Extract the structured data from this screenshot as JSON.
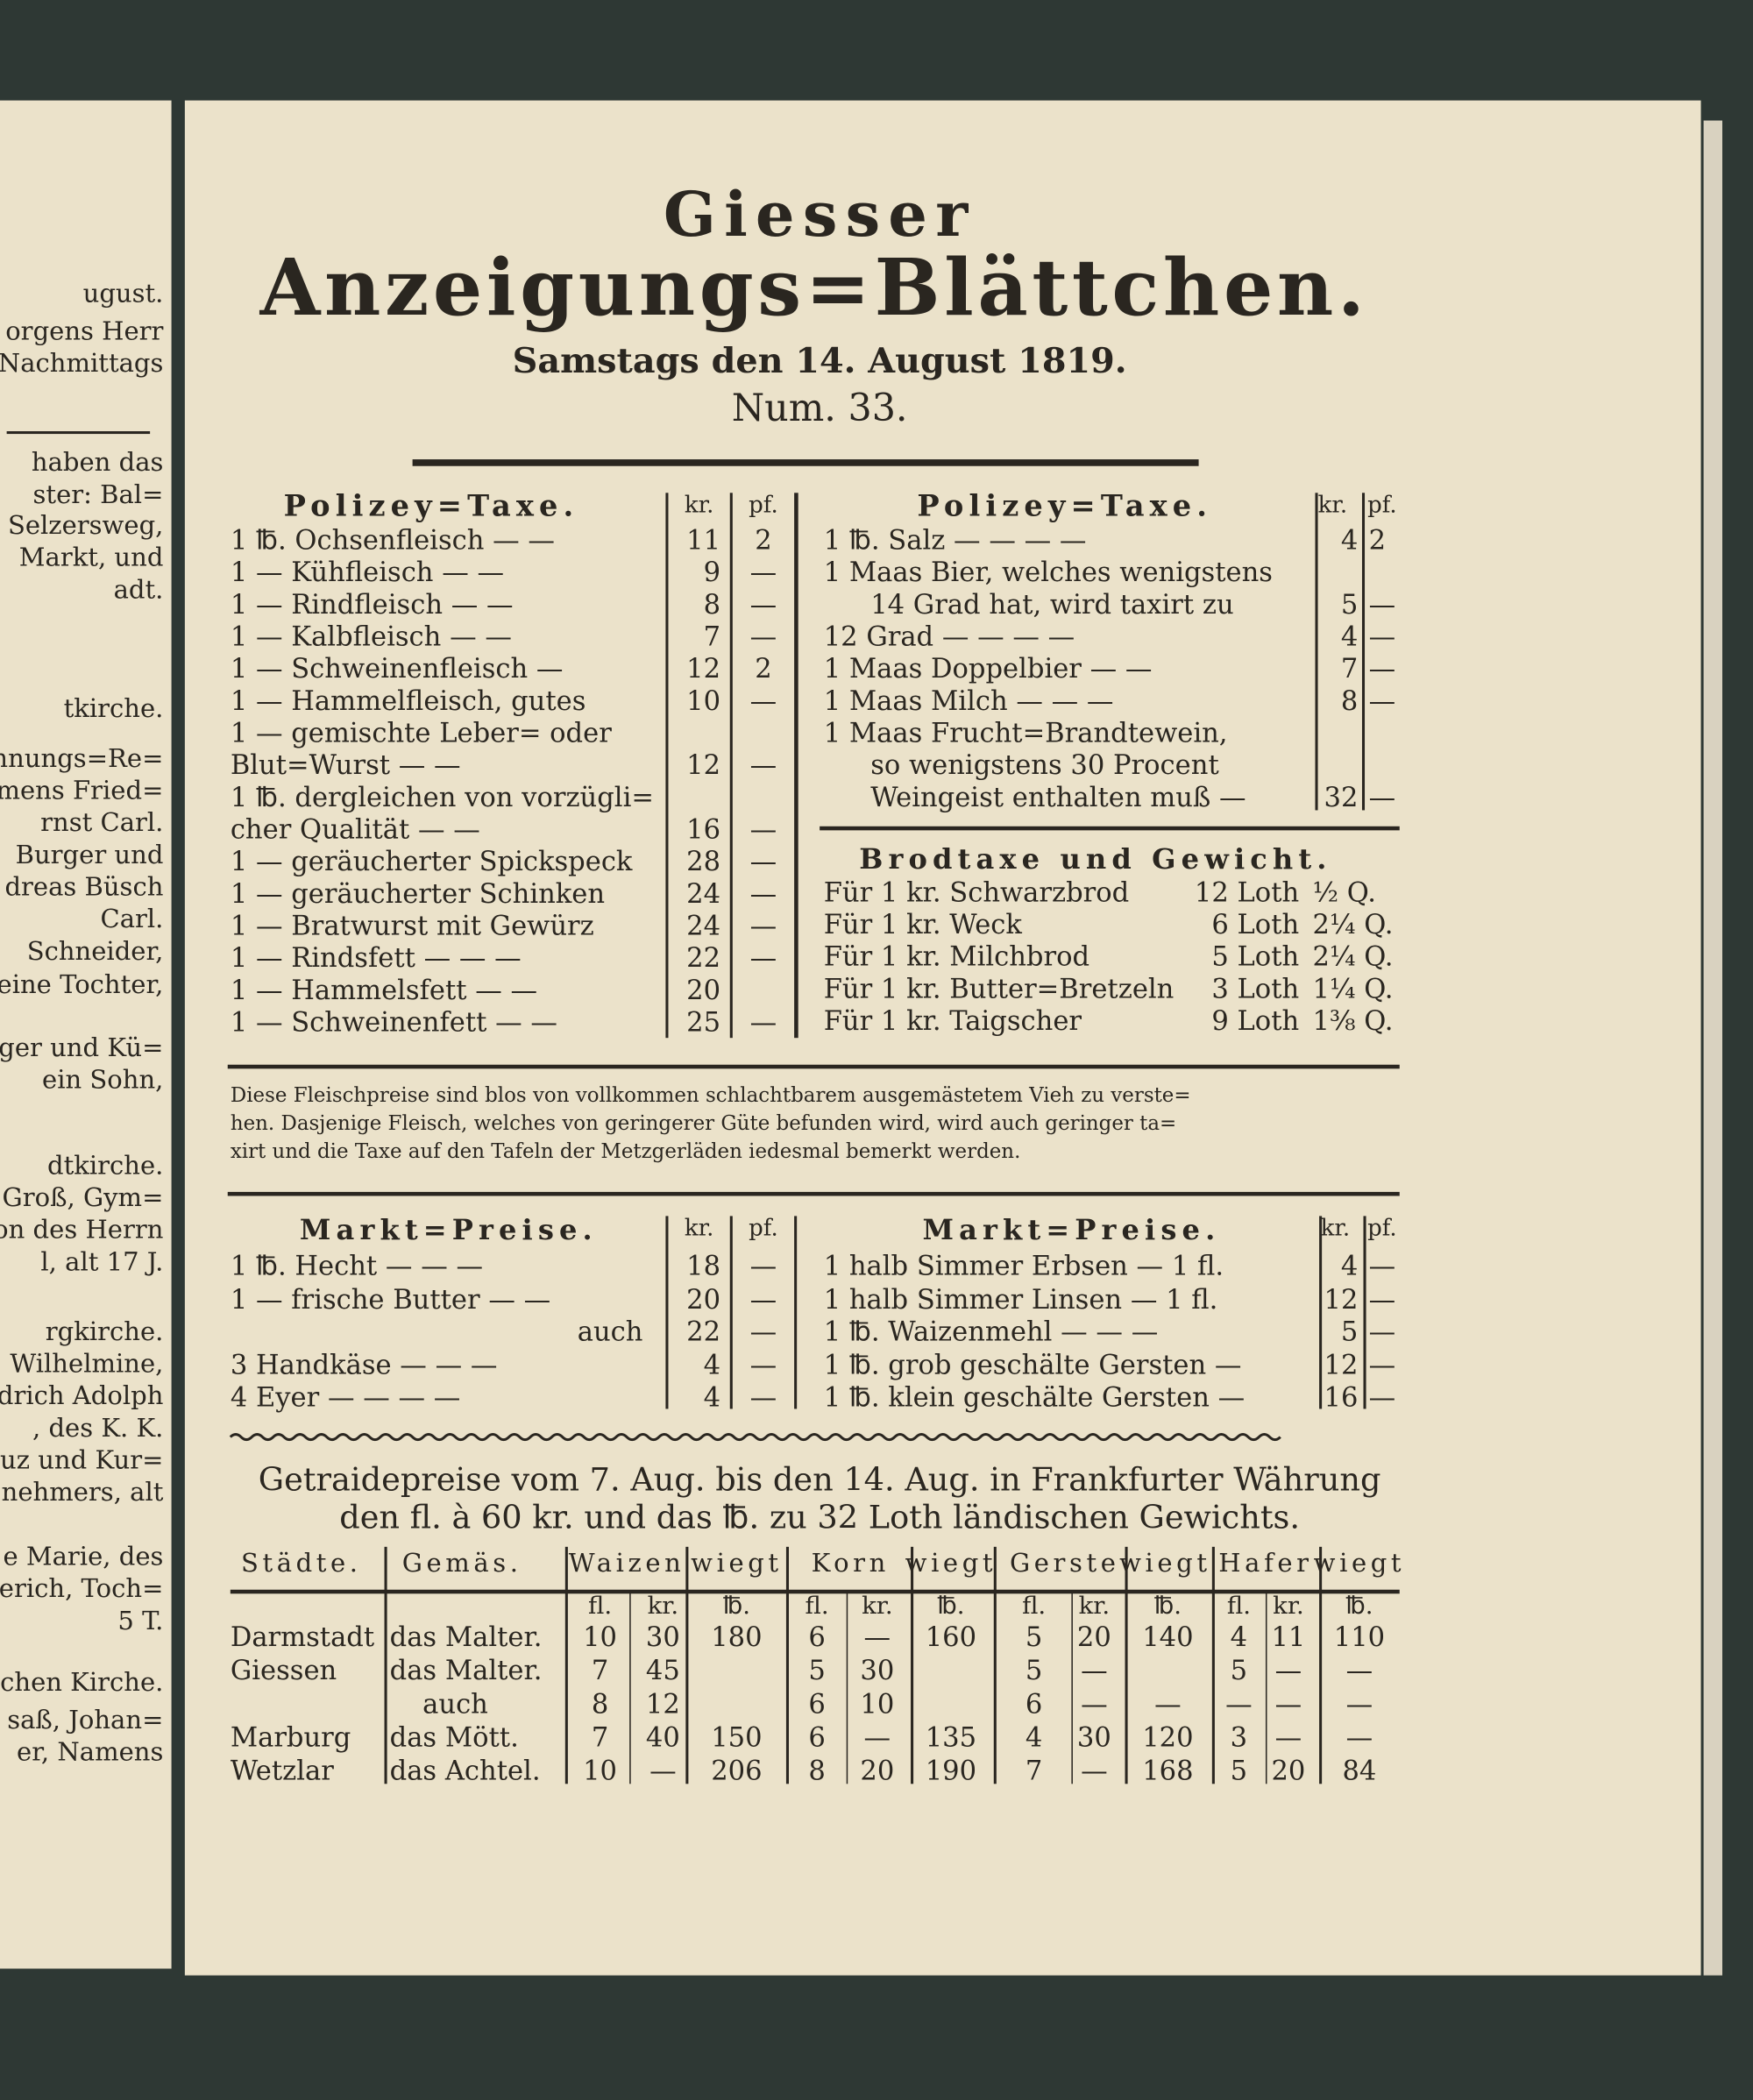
{
  "left_page": {
    "lines": [
      "ugust.",
      "orgens Herr",
      "Nachmittags",
      "haben das",
      "ster: Bal=",
      "Selzersweg,",
      "Markt, und",
      "adt.",
      "tkirche.",
      "chnungs=Re=",
      "mens Fried=",
      "rnst Carl.",
      "Burger und",
      "dreas Büsch",
      "Carl.",
      "Schneider,",
      "eine Tochter,",
      "rger und Kü=",
      "ein Sohn,",
      "dtkirche.",
      "Groß, Gym=",
      "on des Herrn",
      "l, alt 17 J.",
      "rgkirche.",
      "Wilhelmine,",
      "drich Adolph",
      ", des K. K.",
      "euz und Kur=",
      "nehmers, alt",
      "e Marie, des",
      "erich, Toch=",
      "5 T.",
      "chen Kirche.",
      "saß, Johan=",
      "er, Namens"
    ]
  },
  "header": {
    "title": "Giesser",
    "subtitle": "Anzeigungs=Blättchen.",
    "date": "Samstags den 14. August 1819.",
    "number": "Num. 33."
  },
  "police_tax_left": {
    "heading": "Polizey=Taxe.",
    "col_kr": "kr.",
    "col_pf": "pf.",
    "rows": [
      {
        "lines": [
          "1 ℔. Ochsenfleisch — —"
        ],
        "kr": 11,
        "pf": 2
      },
      {
        "lines": [
          "1 — Kühfleisch — —"
        ],
        "kr": 9,
        "pf": "—"
      },
      {
        "lines": [
          "1 — Rindfleisch — —"
        ],
        "kr": 8,
        "pf": "—"
      },
      {
        "lines": [
          "1 — Kalbfleisch — —"
        ],
        "kr": 7,
        "pf": "—"
      },
      {
        "lines": [
          "1 — Schweinenfleisch —"
        ],
        "kr": 12,
        "pf": 2
      },
      {
        "lines": [
          "1 — Hammelfleisch, gutes"
        ],
        "kr": 10,
        "pf": "—"
      },
      {
        "lines": [
          "1 — gemischte Leber= oder",
          "Blut=Wurst — —"
        ],
        "kr": 12,
        "pf": "—"
      },
      {
        "lines": [
          "1 ℔. dergleichen von vorzügli=",
          "cher Qualität — —"
        ],
        "kr": 16,
        "pf": "—"
      },
      {
        "lines": [
          "1 — geräucherter Spickspeck"
        ],
        "kr": 28,
        "pf": "—"
      },
      {
        "lines": [
          "1 — geräucherter Schinken"
        ],
        "kr": 24,
        "pf": "—"
      },
      {
        "lines": [
          "1 — Bratwurst mit Gewürz"
        ],
        "kr": 24,
        "pf": "—"
      },
      {
        "lines": [
          "1 — Rindsfett — — —"
        ],
        "kr": 22,
        "pf": "—"
      },
      {
        "lines": [
          "1 — Hammelsfett — —"
        ],
        "kr": 20,
        "pf": null
      },
      {
        "lines": [
          "1 — Schweinenfett — —"
        ],
        "kr": 25,
        "pf": "—"
      }
    ]
  },
  "police_tax_right": {
    "heading": "Polizey=Taxe.",
    "col_kr": "kr.",
    "col_pf": "pf.",
    "rows": [
      {
        "lines": [
          "1 ℔. Salz — — — —"
        ],
        "kr": 4,
        "pf": 2
      },
      {
        "lines": [
          "1 Maas Bier, welches wenigstens",
          "14 Grad hat, wird taxirt zu"
        ],
        "kr": 5,
        "pf": "—"
      },
      {
        "lines": [
          "12 Grad — — — —"
        ],
        "kr": 4,
        "pf": "—"
      },
      {
        "lines": [
          "1 Maas Doppelbier — —"
        ],
        "kr": 7,
        "pf": "—"
      },
      {
        "lines": [
          "1 Maas Milch — — —"
        ],
        "kr": 8,
        "pf": "—"
      },
      {
        "lines": [
          "1 Maas Frucht=Brandtewein,",
          "so wenigstens 30 Procent",
          "Weingeist enthalten muß —"
        ],
        "kr": 32,
        "pf": "—"
      }
    ]
  },
  "bread_tax": {
    "heading": "Brodtaxe und Gewicht.",
    "rows": [
      [
        "Für 1 kr. Schwarzbrod",
        "12 Loth",
        "½ Q."
      ],
      [
        "Für 1 kr. Weck",
        "6 Loth",
        "2¼ Q."
      ],
      [
        "Für 1 kr. Milchbrod",
        "5 Loth",
        "2¼ Q."
      ],
      [
        "Für 1 kr. Butter=Bretzeln",
        "3 Loth",
        "1¼ Q."
      ],
      [
        "Für 1 kr. Taigscher",
        "9 Loth",
        "1⅜ Q."
      ]
    ]
  },
  "note": {
    "lines": [
      "Diese Fleischpreise sind blos von vollkommen schlachtbarem ausgemästetem Vieh zu verste=",
      "hen. Dasjenige Fleisch, welches von geringerer Güte befunden wird, wird auch geringer ta=",
      "xirt und die Taxe auf den Tafeln der Metzgerläden iedesmal bemerkt werden."
    ]
  },
  "market_left": {
    "heading": "Markt=Preise.",
    "col_kr": "kr.",
    "col_pf": "pf.",
    "rows": [
      {
        "item": "1 ℔. Hecht — — —",
        "kr": 18,
        "pf": "—"
      },
      {
        "item": "1 — frische Butter — —",
        "kr": 20,
        "pf": "—"
      },
      {
        "item": "auch",
        "kr": 22,
        "pf": "—"
      },
      {
        "item": "3 Handkäse — — —",
        "kr": 4,
        "pf": "—"
      },
      {
        "item": "4 Eyer — — — —",
        "kr": 4,
        "pf": "—"
      }
    ]
  },
  "market_right": {
    "heading": "Markt=Preise.",
    "col_kr": "kr.",
    "col_pf": "pf.",
    "rows": [
      {
        "item": "1 halb Simmer Erbsen — 1 fl.",
        "kr": 4,
        "pf": "—"
      },
      {
        "item": "1 halb Simmer Linsen — 1 fl.",
        "kr": 12,
        "pf": "—"
      },
      {
        "item": "1 ℔. Waizenmehl — — —",
        "kr": 5,
        "pf": "—"
      },
      {
        "item": "1 ℔. grob geschälte Gersten —",
        "kr": 12,
        "pf": "—"
      },
      {
        "item": "1 ℔. klein geschälte Gersten —",
        "kr": 16,
        "pf": "—"
      }
    ]
  },
  "grain_prices": {
    "intro": [
      "Getraidepreise vom 7. Aug. bis den 14. Aug. in Frankfurter Währung",
      "den fl. à 60 kr. und das ℔. zu 32 Loth ländischen Gewichts."
    ],
    "headers": [
      "Städte.",
      "Gemäs.",
      "Waizen",
      "wiegt",
      "Korn",
      "wiegt",
      "Gerste",
      "wiegt",
      "Hafer",
      "wiegt"
    ],
    "subheaders": [
      "fl.",
      "kr.",
      "℔.",
      "fl.",
      "kr.",
      "℔.",
      "fl.",
      "kr.",
      "℔.",
      "fl.",
      "kr.",
      "℔."
    ],
    "rows": [
      [
        "Darmstadt",
        "das Malter.",
        10,
        30,
        180,
        6,
        "—",
        160,
        5,
        20,
        140,
        4,
        11,
        110
      ],
      [
        "Giessen",
        "das Malter.",
        7,
        45,
        null,
        5,
        30,
        null,
        5,
        "—",
        null,
        5,
        "—",
        "—"
      ],
      [
        null,
        "auch",
        8,
        12,
        null,
        6,
        10,
        null,
        6,
        "—",
        "—",
        "—",
        "—",
        "—"
      ],
      [
        "Marburg",
        "das Mött.",
        7,
        40,
        150,
        6,
        "—",
        135,
        4,
        30,
        120,
        3,
        "—",
        "—"
      ],
      [
        "Wetzlar",
        "das Achtel.",
        10,
        "—",
        206,
        8,
        20,
        190,
        7,
        "—",
        168,
        5,
        20,
        84
      ]
    ]
  }
}
